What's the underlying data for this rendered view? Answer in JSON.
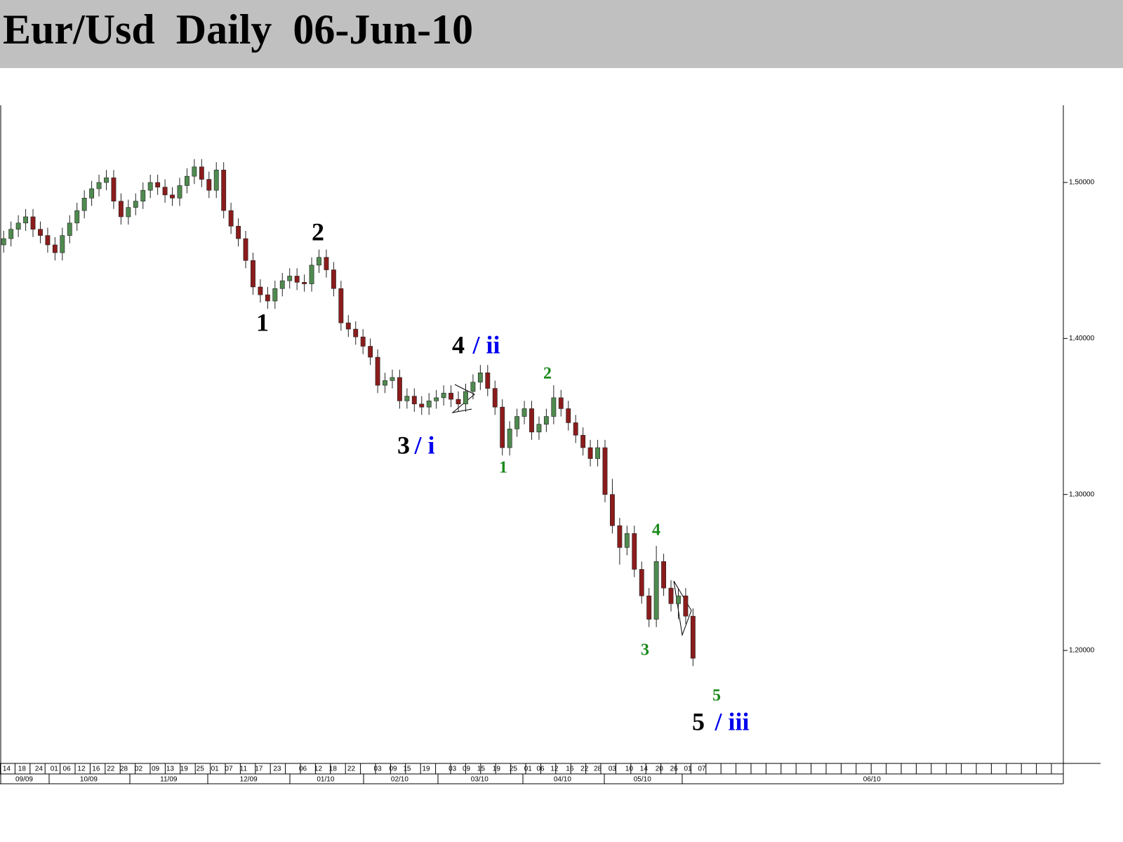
{
  "chart_data": {
    "type": "candlestick",
    "title": "Eur/Usd  Daily  06-Jun-10",
    "open": [
      1.46,
      1.464,
      1.47,
      1.474,
      1.478,
      1.47,
      1.466,
      1.46,
      1.455,
      1.466,
      1.474,
      1.482,
      1.49,
      1.496,
      1.5,
      1.503,
      1.488,
      1.478,
      1.484,
      1.488,
      1.495,
      1.5,
      1.497,
      1.492,
      1.49,
      1.498,
      1.504,
      1.51,
      1.502,
      1.495,
      1.508,
      1.482,
      1.472,
      1.464,
      1.45,
      1.433,
      1.428,
      1.424,
      1.432,
      1.437,
      1.44,
      1.436,
      1.435,
      1.447,
      1.452,
      1.444,
      1.432,
      1.41,
      1.406,
      1.401,
      1.395,
      1.388,
      1.37,
      1.373,
      1.375,
      1.36,
      1.363,
      1.358,
      1.356,
      1.36,
      1.362,
      1.365,
      1.361,
      1.358,
      1.366,
      1.372,
      1.378,
      1.368,
      1.356,
      1.33,
      1.342,
      1.35,
      1.355,
      1.34,
      1.345,
      1.35,
      1.362,
      1.355,
      1.346,
      1.338,
      1.33,
      1.323,
      1.33,
      1.3,
      1.28,
      1.266,
      1.275,
      1.252,
      1.235,
      1.22,
      1.257,
      1.24,
      1.23,
      1.235,
      1.222
    ],
    "high": [
      1.469,
      1.475,
      1.479,
      1.483,
      1.483,
      1.475,
      1.471,
      1.465,
      1.471,
      1.479,
      1.487,
      1.495,
      1.501,
      1.505,
      1.508,
      1.508,
      1.493,
      1.489,
      1.493,
      1.5,
      1.505,
      1.505,
      1.502,
      1.497,
      1.503,
      1.509,
      1.515,
      1.515,
      1.507,
      1.513,
      1.513,
      1.487,
      1.477,
      1.469,
      1.455,
      1.438,
      1.433,
      1.437,
      1.442,
      1.445,
      1.445,
      1.441,
      1.452,
      1.457,
      1.457,
      1.449,
      1.437,
      1.415,
      1.411,
      1.406,
      1.4,
      1.393,
      1.378,
      1.38,
      1.38,
      1.368,
      1.368,
      1.363,
      1.365,
      1.367,
      1.37,
      1.37,
      1.366,
      1.371,
      1.377,
      1.383,
      1.383,
      1.373,
      1.361,
      1.347,
      1.355,
      1.36,
      1.36,
      1.35,
      1.355,
      1.37,
      1.367,
      1.36,
      1.351,
      1.343,
      1.335,
      1.335,
      1.335,
      1.31,
      1.285,
      1.28,
      1.28,
      1.257,
      1.24,
      1.267,
      1.262,
      1.245,
      1.24,
      1.24,
      1.227
    ],
    "low": [
      1.455,
      1.459,
      1.465,
      1.469,
      1.465,
      1.461,
      1.455,
      1.45,
      1.45,
      1.461,
      1.469,
      1.477,
      1.485,
      1.491,
      1.495,
      1.483,
      1.473,
      1.473,
      1.479,
      1.483,
      1.49,
      1.492,
      1.487,
      1.485,
      1.485,
      1.493,
      1.499,
      1.497,
      1.49,
      1.49,
      1.477,
      1.467,
      1.459,
      1.445,
      1.428,
      1.423,
      1.419,
      1.419,
      1.427,
      1.432,
      1.431,
      1.43,
      1.43,
      1.442,
      1.439,
      1.427,
      1.405,
      1.401,
      1.396,
      1.39,
      1.383,
      1.365,
      1.365,
      1.368,
      1.355,
      1.355,
      1.353,
      1.351,
      1.351,
      1.355,
      1.357,
      1.356,
      1.353,
      1.353,
      1.361,
      1.367,
      1.363,
      1.351,
      1.325,
      1.325,
      1.337,
      1.345,
      1.335,
      1.335,
      1.34,
      1.345,
      1.35,
      1.341,
      1.333,
      1.325,
      1.318,
      1.318,
      1.295,
      1.275,
      1.255,
      1.261,
      1.247,
      1.23,
      1.215,
      1.215,
      1.235,
      1.225,
      1.22,
      1.217,
      1.19
    ],
    "close": [
      1.464,
      1.47,
      1.474,
      1.478,
      1.47,
      1.466,
      1.46,
      1.455,
      1.466,
      1.474,
      1.482,
      1.49,
      1.496,
      1.5,
      1.503,
      1.488,
      1.478,
      1.484,
      1.488,
      1.495,
      1.5,
      1.497,
      1.492,
      1.49,
      1.498,
      1.504,
      1.51,
      1.502,
      1.495,
      1.508,
      1.482,
      1.472,
      1.464,
      1.45,
      1.433,
      1.428,
      1.424,
      1.432,
      1.437,
      1.44,
      1.436,
      1.435,
      1.447,
      1.452,
      1.444,
      1.432,
      1.41,
      1.406,
      1.401,
      1.395,
      1.388,
      1.37,
      1.373,
      1.375,
      1.36,
      1.363,
      1.358,
      1.356,
      1.36,
      1.362,
      1.365,
      1.361,
      1.358,
      1.366,
      1.372,
      1.378,
      1.368,
      1.356,
      1.33,
      1.342,
      1.35,
      1.355,
      1.34,
      1.345,
      1.35,
      1.362,
      1.355,
      1.346,
      1.338,
      1.33,
      1.323,
      1.33,
      1.3,
      1.28,
      1.266,
      1.275,
      1.252,
      1.235,
      1.22,
      1.257,
      1.24,
      1.23,
      1.235,
      1.222,
      1.195
    ],
    "up_color": "#4f8a4f",
    "down_color": "#8b1c1c",
    "ylim": [
      1.1276,
      1.5495
    ],
    "yticks": [
      {
        "value": 1.2,
        "label": "1,20000"
      },
      {
        "value": 1.3,
        "label": "1,30000"
      },
      {
        "value": 1.4,
        "label": "1,40000"
      },
      {
        "value": 1.5,
        "label": "1,50000"
      }
    ],
    "xlim": [
      -0.5,
      144.5
    ],
    "xticks": [
      {
        "value": 0.4,
        "label": "14"
      },
      {
        "value": 2.5,
        "label": "18"
      },
      {
        "value": 4.8,
        "label": "24"
      },
      {
        "value": 6.9,
        "label": "01"
      },
      {
        "value": 8.6,
        "label": "06"
      },
      {
        "value": 10.6,
        "label": "12"
      },
      {
        "value": 12.6,
        "label": "16"
      },
      {
        "value": 14.6,
        "label": "22"
      },
      {
        "value": 16.4,
        "label": "28"
      },
      {
        "value": 18.4,
        "label": "02"
      },
      {
        "value": 20.7,
        "label": "09"
      },
      {
        "value": 22.7,
        "label": "13"
      },
      {
        "value": 24.6,
        "label": "19"
      },
      {
        "value": 26.8,
        "label": "25"
      },
      {
        "value": 28.8,
        "label": "01"
      },
      {
        "value": 30.7,
        "label": "07"
      },
      {
        "value": 32.7,
        "label": "11"
      },
      {
        "value": 34.8,
        "label": "17"
      },
      {
        "value": 37.3,
        "label": "23"
      },
      {
        "value": 40.8,
        "label": "06"
      },
      {
        "value": 42.9,
        "label": "12"
      },
      {
        "value": 44.9,
        "label": "18"
      },
      {
        "value": 47.4,
        "label": "22"
      },
      {
        "value": 51.0,
        "label": "03"
      },
      {
        "value": 53.1,
        "label": "09"
      },
      {
        "value": 55.0,
        "label": "15"
      },
      {
        "value": 57.6,
        "label": "19"
      },
      {
        "value": 61.2,
        "label": "03"
      },
      {
        "value": 63.1,
        "label": "09"
      },
      {
        "value": 65.1,
        "label": "15"
      },
      {
        "value": 67.2,
        "label": "19"
      },
      {
        "value": 69.5,
        "label": "25"
      },
      {
        "value": 71.5,
        "label": "01"
      },
      {
        "value": 73.2,
        "label": "06"
      },
      {
        "value": 75.1,
        "label": "12"
      },
      {
        "value": 77.2,
        "label": "16"
      },
      {
        "value": 79.2,
        "label": "22"
      },
      {
        "value": 81.0,
        "label": "28"
      },
      {
        "value": 83.0,
        "label": "03"
      },
      {
        "value": 85.3,
        "label": "10"
      },
      {
        "value": 87.3,
        "label": "14"
      },
      {
        "value": 89.4,
        "label": "20"
      },
      {
        "value": 91.4,
        "label": "26"
      },
      {
        "value": 93.3,
        "label": "01"
      },
      {
        "value": 95.2,
        "label": "07"
      }
    ],
    "month_ticks": [
      {
        "value": 2.8,
        "label": "09/09"
      },
      {
        "value": 11.6,
        "label": "10/09"
      },
      {
        "value": 22.5,
        "label": "11/09"
      },
      {
        "value": 33.4,
        "label": "12/09"
      },
      {
        "value": 43.9,
        "label": "01/10"
      },
      {
        "value": 54.0,
        "label": "02/10"
      },
      {
        "value": 64.9,
        "label": "03/10"
      },
      {
        "value": 76.2,
        "label": "04/10"
      },
      {
        "value": 87.1,
        "label": "05/10"
      },
      {
        "value": 118.4,
        "label": "06/10"
      }
    ],
    "annotations": [
      {
        "text": "1",
        "color": "#000000"
      },
      {
        "text": "2",
        "color": "#000000"
      },
      {
        "text": "3",
        "color": "#000000"
      },
      {
        "text": "/ i",
        "color": "#0000ee"
      },
      {
        "text": "4",
        "color": "#000000"
      },
      {
        "text": "/ ii",
        "color": "#0000ee"
      },
      {
        "text": "5",
        "color": "#000000"
      },
      {
        "text": "/ iii",
        "color": "#0000ee"
      },
      {
        "text": "1",
        "color": "#1a8a1a"
      },
      {
        "text": "2",
        "color": "#1a8a1a"
      },
      {
        "text": "3",
        "color": "#1a8a1a"
      },
      {
        "text": "4",
        "color": "#1a8a1a"
      },
      {
        "text": "5",
        "color": "#1a8a1a"
      }
    ]
  }
}
